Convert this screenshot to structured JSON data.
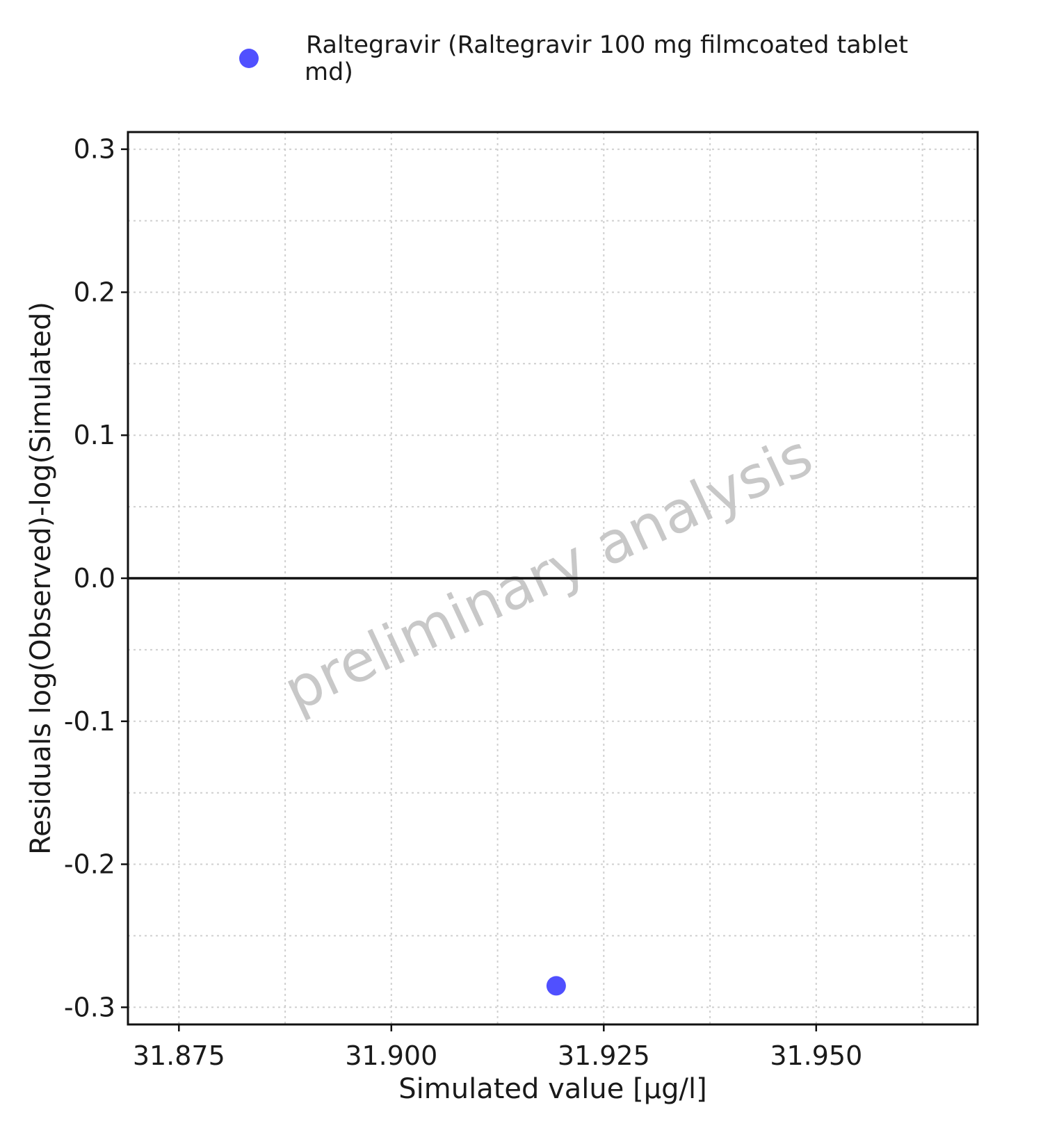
{
  "chart_data": {
    "type": "scatter",
    "xlabel": "Simulated value [µg/l]",
    "ylabel": "Residuals log(Observed)-log(Simulated)",
    "xlim": [
      31.869,
      31.969
    ],
    "ylim": [
      -0.312,
      0.312
    ],
    "x_ticks": [
      31.875,
      31.9,
      31.925,
      31.95
    ],
    "x_tick_labels": [
      "31.875",
      "31.900",
      "31.925",
      "31.950"
    ],
    "y_ticks": [
      -0.3,
      -0.2,
      -0.1,
      0.0,
      0.1,
      0.2,
      0.3
    ],
    "y_tick_labels": [
      "-0.3",
      "-0.2",
      "-0.1",
      "0.0",
      "0.1",
      "0.2",
      "0.3"
    ],
    "grid": true,
    "reference_line_y": 0.0,
    "legend_position": "top",
    "series": [
      {
        "name": "Raltegravir (Raltegravir 100 mg filmcoated tablet md)",
        "legend_lines": [
          "Raltegravir (Raltegravir 100 mg filmcoated tablet",
          "md)"
        ],
        "color": "#5050ff",
        "points": [
          {
            "x": 31.9194,
            "y": -0.285
          }
        ]
      }
    ],
    "watermark": "preliminary analysis"
  }
}
